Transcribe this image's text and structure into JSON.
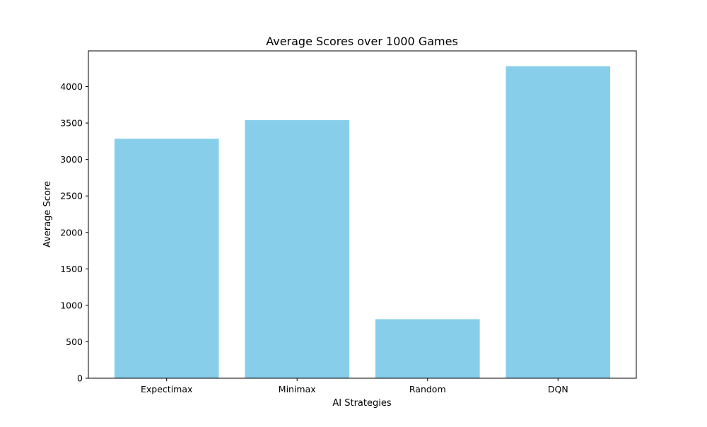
{
  "chart_data": {
    "type": "bar",
    "title": "Average Scores over 1000 Games",
    "xlabel": "AI Strategies",
    "ylabel": "Average Score",
    "categories": [
      "Expectimax",
      "Minimax",
      "Random",
      "DQN"
    ],
    "values": [
      3285,
      3540,
      810,
      4280
    ],
    "ylim": [
      0,
      4490
    ],
    "yticks": [
      0,
      500,
      1000,
      1500,
      2000,
      2500,
      3000,
      3500,
      4000
    ],
    "grid": false,
    "legend": "none",
    "bar_color": "#87CEEB",
    "axis_color": "#000000"
  }
}
